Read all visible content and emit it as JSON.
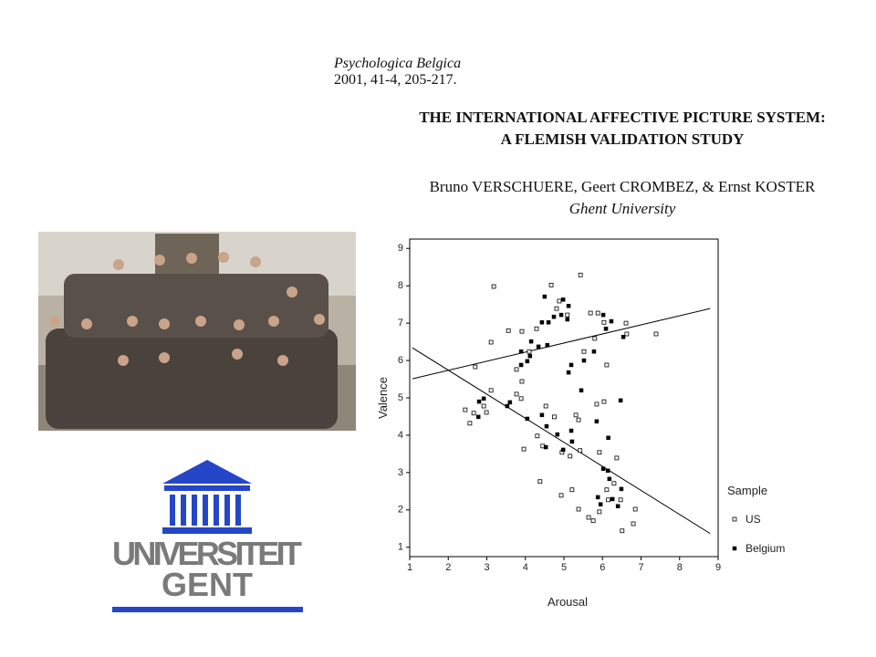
{
  "header": {
    "journal": "Psychologica Belgica",
    "citation": "2001, 41-4, 205-217.",
    "title_lines": [
      "THE INTERNATIONAL AFFECTIVE PICTURE SYSTEM:",
      "A FLEMISH VALIDATION STUDY"
    ],
    "authors": "Bruno VERSCHUERE, Geert CROMBEZ, & Ernst KOSTER",
    "affiliation": "Ghent University"
  },
  "logo": {
    "line1": "UNIVERSITEIT",
    "line2": "GENT"
  },
  "chart_data": {
    "type": "scatter",
    "x_label": "Arousal",
    "y_label": "Valence",
    "xlim": [
      1,
      9
    ],
    "ylim": [
      0.75,
      9.25
    ],
    "xticks": [
      1,
      2,
      3,
      4,
      5,
      6,
      7,
      8,
      9
    ],
    "yticks": [
      1,
      2,
      3,
      4,
      5,
      6,
      7,
      8,
      9
    ],
    "legend_title": "Sample",
    "legend": "right",
    "series": [
      {
        "name": "US",
        "color": "#000000",
        "marker": "open",
        "x": [
          3.18,
          4.67,
          5.43,
          3.11,
          2.7,
          3.56,
          3.91,
          4.29,
          4.81,
          4.88,
          5.09,
          5.69,
          5.88,
          6.04,
          6.61,
          6.63,
          7.39,
          5.8,
          5.52,
          6.11,
          3.77,
          3.91,
          4.1,
          3.11,
          3.77,
          3.89,
          2.44,
          2.56,
          2.66,
          2.99,
          2.92,
          4.53,
          4.75,
          5.31,
          5.38,
          6.04,
          5.85,
          3.96,
          4.31,
          4.45,
          4.95,
          5.16,
          5.42,
          5.92,
          6.37,
          4.38,
          4.93,
          5.21,
          5.38,
          5.64,
          5.76,
          6.11,
          6.15,
          6.47,
          6.85,
          6.8,
          6.51,
          6.3,
          5.92
        ],
        "values": [
          7.98,
          8.02,
          8.29,
          6.49,
          5.83,
          6.8,
          6.78,
          6.85,
          7.39,
          7.59,
          7.22,
          7.27,
          7.27,
          7.02,
          7.0,
          6.71,
          6.71,
          6.59,
          6.24,
          5.88,
          5.76,
          5.44,
          6.24,
          5.2,
          5.1,
          4.98,
          4.68,
          4.32,
          4.59,
          4.61,
          4.78,
          4.78,
          4.49,
          4.54,
          4.41,
          4.9,
          4.83,
          3.63,
          3.98,
          3.71,
          3.54,
          3.44,
          3.59,
          3.54,
          3.39,
          2.76,
          2.39,
          2.54,
          2.02,
          1.8,
          1.71,
          2.54,
          2.27,
          2.27,
          2.02,
          1.63,
          1.44,
          2.71,
          1.95
        ]
      },
      {
        "name": "Belgium",
        "color": "#000000",
        "marker": "filled",
        "x": [
          4.5,
          4.98,
          5.12,
          4.43,
          4.6,
          4.74,
          4.93,
          5.09,
          6.02,
          6.23,
          6.09,
          6.54,
          4.12,
          4.15,
          4.34,
          3.89,
          4.57,
          5.19,
          5.52,
          5.78,
          5.12,
          4.05,
          3.89,
          3.53,
          3.6,
          2.8,
          2.92,
          2.78,
          4.05,
          4.43,
          4.55,
          5.19,
          5.21,
          4.83,
          5.45,
          5.85,
          6.47,
          6.15,
          4.98,
          4.53,
          6.02,
          6.14,
          6.18,
          5.88,
          5.95,
          6.26,
          6.4,
          6.49
        ],
        "values": [
          7.71,
          7.63,
          7.46,
          7.02,
          7.02,
          7.17,
          7.22,
          7.1,
          7.22,
          7.05,
          6.85,
          6.63,
          6.12,
          6.51,
          6.37,
          6.24,
          6.41,
          5.88,
          6.0,
          6.24,
          5.68,
          5.98,
          5.88,
          4.78,
          4.88,
          4.9,
          4.98,
          4.49,
          4.44,
          4.54,
          4.24,
          4.12,
          3.83,
          4.02,
          5.2,
          4.37,
          4.93,
          3.93,
          3.61,
          3.68,
          3.1,
          3.05,
          2.83,
          2.34,
          2.15,
          2.29,
          2.1,
          2.56
        ]
      }
    ],
    "fit_lines": [
      {
        "color": "#000000",
        "x": [
          1.07,
          8.79
        ],
        "values": [
          5.51,
          7.39
        ]
      },
      {
        "color": "#000000",
        "x": [
          1.07,
          8.79
        ],
        "values": [
          6.34,
          1.37
        ]
      }
    ]
  }
}
